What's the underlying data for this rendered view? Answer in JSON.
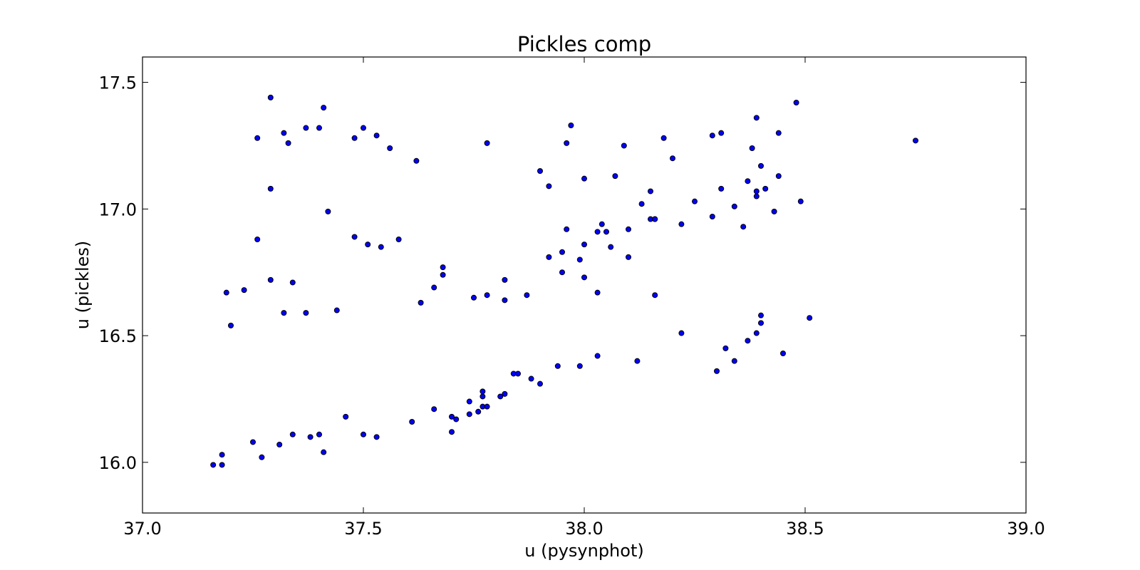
{
  "chart_data": {
    "type": "scatter",
    "title": "Pickles comp",
    "xlabel": "u (pysynphot)",
    "ylabel": "u (pickles)",
    "xlim": [
      37.0,
      39.0
    ],
    "ylim": [
      15.8,
      17.6
    ],
    "xticks": [
      37.0,
      37.5,
      38.0,
      38.5,
      39.0
    ],
    "xtick_labels": [
      "37.0",
      "37.5",
      "38.0",
      "38.5",
      "39.0"
    ],
    "yticks": [
      16.0,
      16.5,
      17.0,
      17.5
    ],
    "ytick_labels": [
      "16.0",
      "16.5",
      "17.0",
      "17.5"
    ],
    "grid": false,
    "marker_color": "#0000ff",
    "marker_edge_color": "#000000",
    "series": [
      {
        "x": [
          37.16,
          37.18,
          37.18,
          37.25,
          37.27,
          37.31,
          37.34,
          37.38,
          37.4,
          37.41,
          37.46,
          37.5,
          37.53,
          37.61,
          37.66,
          37.7,
          37.7,
          37.71,
          37.74,
          37.74,
          37.76,
          37.77,
          37.77,
          37.77,
          37.78,
          37.81,
          37.82,
          37.84,
          37.85,
          37.88,
          37.9,
          37.94,
          37.99,
          38.03,
          38.12,
          38.22,
          38.3,
          38.32,
          38.34,
          38.37,
          38.39,
          38.4,
          38.4,
          38.45,
          38.51,
          37.19,
          37.2,
          37.23,
          37.26,
          37.29,
          37.32,
          37.34,
          37.37,
          37.44,
          37.48,
          37.51,
          37.54,
          37.58,
          37.63,
          37.66,
          37.68,
          37.68,
          37.75,
          37.78,
          37.82,
          37.82,
          37.87,
          37.92,
          37.95,
          37.95,
          37.96,
          37.99,
          38.0,
          38.0,
          38.03,
          38.03,
          38.04,
          38.05,
          38.06,
          38.1,
          38.1,
          38.13,
          38.15,
          38.16,
          38.16,
          38.16,
          38.22,
          37.29,
          37.42,
          37.9,
          37.92,
          38.0,
          38.07,
          38.15,
          38.25,
          38.29,
          38.31,
          38.34,
          38.36,
          38.37,
          38.39,
          38.39,
          38.4,
          38.41,
          38.43,
          38.44,
          38.49,
          37.26,
          37.29,
          37.32,
          37.33,
          37.37,
          37.4,
          37.41,
          37.48,
          37.5,
          37.53,
          37.56,
          37.62,
          37.78,
          37.96,
          37.97,
          38.09,
          38.18,
          38.2,
          38.29,
          38.31,
          38.38,
          38.39,
          38.44,
          38.48,
          38.75
        ],
        "y": [
          15.99,
          16.03,
          15.99,
          16.08,
          16.02,
          16.07,
          16.11,
          16.1,
          16.11,
          16.04,
          16.18,
          16.11,
          16.1,
          16.16,
          16.21,
          16.12,
          16.18,
          16.17,
          16.19,
          16.24,
          16.2,
          16.22,
          16.26,
          16.28,
          16.22,
          16.26,
          16.27,
          16.35,
          16.35,
          16.33,
          16.31,
          16.38,
          16.38,
          16.42,
          16.4,
          16.51,
          16.36,
          16.45,
          16.4,
          16.48,
          16.51,
          16.55,
          16.58,
          16.43,
          16.57,
          16.67,
          16.54,
          16.68,
          16.88,
          16.72,
          16.59,
          16.71,
          16.59,
          16.6,
          16.89,
          16.86,
          16.85,
          16.88,
          16.63,
          16.69,
          16.77,
          16.74,
          16.65,
          16.66,
          16.64,
          16.72,
          16.66,
          16.81,
          16.75,
          16.83,
          16.92,
          16.8,
          16.73,
          16.86,
          16.91,
          16.67,
          16.94,
          16.91,
          16.85,
          16.92,
          16.81,
          17.02,
          16.96,
          16.96,
          16.96,
          16.66,
          16.94,
          17.08,
          16.99,
          17.15,
          17.09,
          17.12,
          17.13,
          17.07,
          17.03,
          16.97,
          17.08,
          17.01,
          16.93,
          17.11,
          17.07,
          17.05,
          17.17,
          17.08,
          16.99,
          17.13,
          17.03,
          17.28,
          17.44,
          17.3,
          17.26,
          17.32,
          17.32,
          17.4,
          17.28,
          17.32,
          17.29,
          17.24,
          17.19,
          17.26,
          17.26,
          17.33,
          17.25,
          17.28,
          17.2,
          17.29,
          17.3,
          17.24,
          17.36,
          17.3,
          17.42,
          17.27
        ]
      }
    ]
  }
}
